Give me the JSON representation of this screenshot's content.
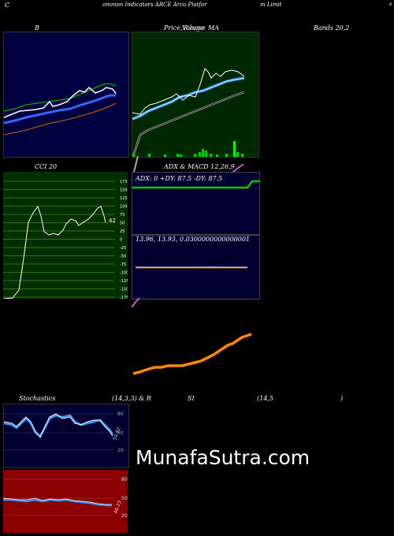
{
  "header": {
    "c_letter": "C",
    "title_mid": "ommon  Indicators ARCE Arco  Platfor",
    "title_right": "m Limit",
    "title_dot": "e"
  },
  "bollinger": {
    "label": "B",
    "label_right": "Bands 20,2"
  },
  "price": {
    "label": "Price,",
    "overlap_a": "Volume",
    "overlap_b": "Range",
    "label_ma": "MA"
  },
  "cci": {
    "label": "CCI 20",
    "value_label": "42",
    "levels": [
      "175",
      "150",
      "125",
      "100",
      "75",
      "50",
      "25",
      "0",
      "-25",
      "-50",
      "-75",
      "-100",
      "-125",
      "-150",
      "-175"
    ]
  },
  "adx": {
    "label": "ADX  & MACD 12,26,9",
    "values": "ADX: 0   +DY: 87.5 -DY: 87.5"
  },
  "macd": {
    "values": "13.96,   13.93,   0.0300000000000001"
  },
  "stoch": {
    "label": "Stochastics",
    "params": "(14,3,3) & R",
    "si": "SI",
    "rsi_params": "(14,5",
    "paren": ")",
    "levels": [
      "80",
      "50",
      "20"
    ],
    "value_label": "59.82"
  },
  "rsi": {
    "levels": [
      "80",
      "50",
      "20"
    ],
    "value_label": "46.23"
  },
  "watermark": "MunafaSutra.com",
  "colors": {
    "bb_bg": "#000040",
    "price_bg": "#002800",
    "cci_bg": "#003000",
    "adx_bg": "#000030",
    "stoch_bg": "#000030",
    "rsi_bg": "#8b0000"
  }
}
